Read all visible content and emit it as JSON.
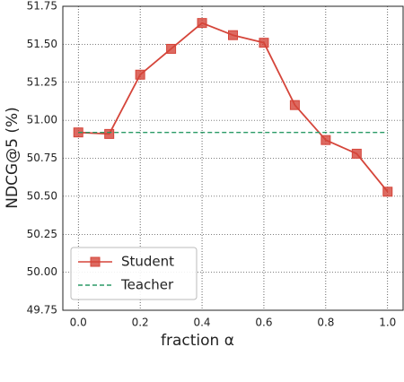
{
  "chart_data": {
    "type": "line",
    "x_label": "fraction α",
    "y_label": "NDCG@5 (%)",
    "x": [
      0,
      0.1,
      0.2,
      0.3,
      0.4,
      0.5,
      0.6,
      0.7,
      0.8,
      0.9,
      1
    ],
    "series": [
      {
        "name": "Student",
        "color": "#d5453a",
        "marker": "square",
        "values": [
          50.92,
          50.91,
          51.3,
          51.47,
          51.64,
          51.56,
          51.51,
          51.1,
          50.87,
          50.78,
          50.53
        ]
      },
      {
        "name": "Teacher",
        "color": "#2a9a66",
        "dashed": true,
        "values": [
          50.92,
          50.92,
          50.92,
          50.92,
          50.92,
          50.92,
          50.92,
          50.92,
          50.92,
          50.92,
          50.92
        ]
      }
    ],
    "xlim": [
      -0.05,
      1.05
    ],
    "xticks": [
      {
        "value": 0,
        "label": "0.0"
      },
      0.2,
      0.4,
      0.6,
      0.8,
      {
        "value": 1,
        "label": "1.0"
      }
    ],
    "ylim": [
      49.75,
      51.75
    ],
    "yticks": [
      49.75,
      {
        "value": 50,
        "label": "50.00"
      },
      50.25,
      {
        "value": 50.5,
        "label": "50.50"
      },
      50.75,
      {
        "value": 51,
        "label": "51.00"
      },
      51.25,
      {
        "value": 51.5,
        "label": "51.50"
      },
      51.75
    ],
    "grid": true,
    "legend": "lower left"
  }
}
